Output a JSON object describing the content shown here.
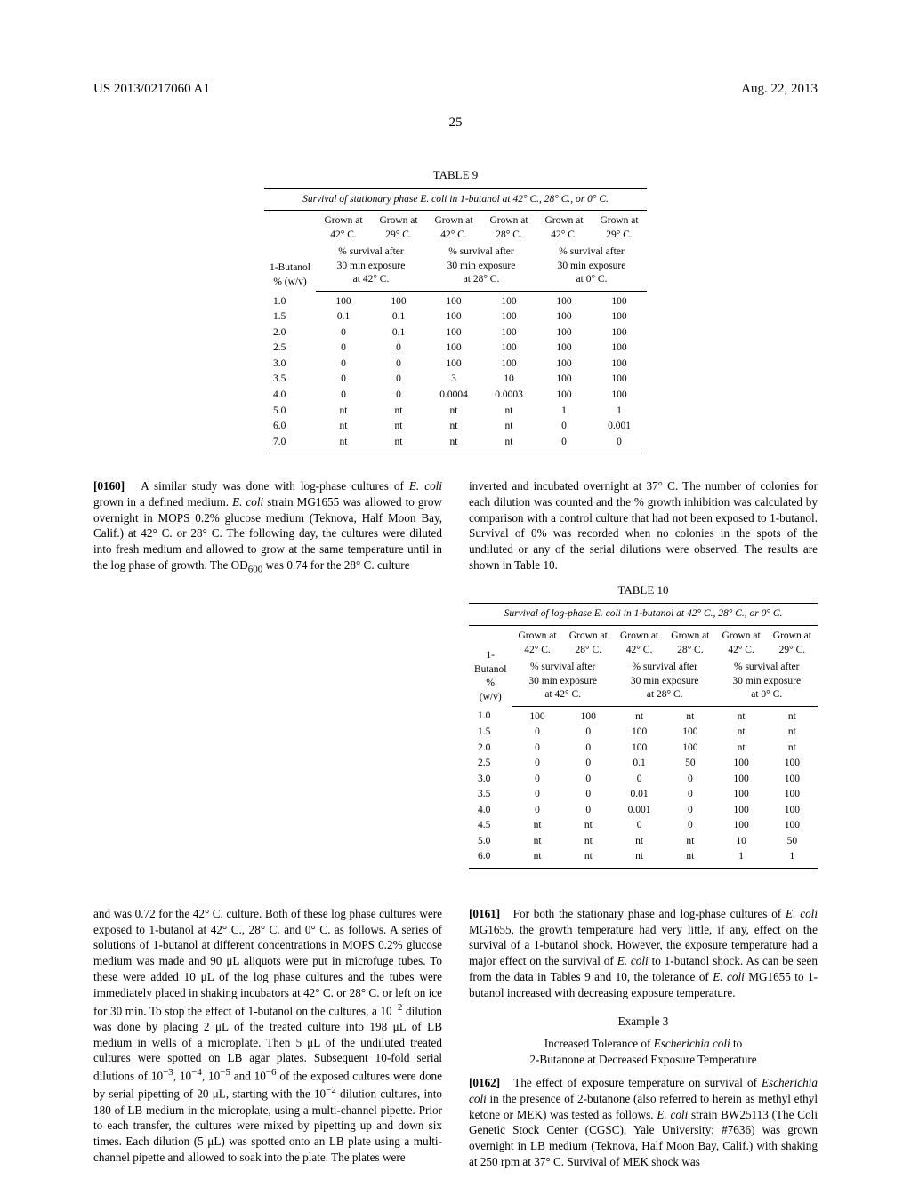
{
  "header": {
    "left": "US 2013/0217060 A1",
    "right": "Aug. 22, 2013",
    "page": "25"
  },
  "table9": {
    "label": "TABLE 9",
    "caption": "Survival of stationary phase E. coli in 1-butanol at 42° C., 28° C., or 0° C.",
    "col1": "1-Butanol\n% (w/v)",
    "groups": [
      {
        "a": "Grown at\n42° C.",
        "b": "Grown at\n29° C.",
        "sub": "% survival after\n30 min exposure\nat 42° C."
      },
      {
        "a": "Grown at\n42° C.",
        "b": "Grown at\n28° C.",
        "sub": "% survival after\n30 min exposure\nat 28° C."
      },
      {
        "a": "Grown at\n42° C.",
        "b": "Grown at\n29° C.",
        "sub": "% survival after\n30 min exposure\nat 0° C."
      }
    ],
    "rows": [
      [
        "1.0",
        "100",
        "100",
        "100",
        "100",
        "100",
        "100"
      ],
      [
        "1.5",
        "0.1",
        "0.1",
        "100",
        "100",
        "100",
        "100"
      ],
      [
        "2.0",
        "0",
        "0.1",
        "100",
        "100",
        "100",
        "100"
      ],
      [
        "2.5",
        "0",
        "0",
        "100",
        "100",
        "100",
        "100"
      ],
      [
        "3.0",
        "0",
        "0",
        "100",
        "100",
        "100",
        "100"
      ],
      [
        "3.5",
        "0",
        "0",
        "3",
        "10",
        "100",
        "100"
      ],
      [
        "4.0",
        "0",
        "0",
        "0.0004",
        "0.0003",
        "100",
        "100"
      ],
      [
        "5.0",
        "nt",
        "nt",
        "nt",
        "nt",
        "1",
        "1"
      ],
      [
        "6.0",
        "nt",
        "nt",
        "nt",
        "nt",
        "0",
        "0.001"
      ],
      [
        "7.0",
        "nt",
        "nt",
        "nt",
        "nt",
        "0",
        "0"
      ]
    ]
  },
  "para1": {
    "num": "[0160]",
    "text": "A similar study was done with log-phase cultures of E. coli grown in a defined medium. E. coli strain MG1655 was allowed to grow overnight in MOPS 0.2% glucose medium (Teknova, Half Moon Bay, Calif.) at 42° C. or 28° C. The following day, the cultures were diluted into fresh medium and allowed to grow at the same temperature until in the log phase of growth. The OD₆₀₀ was 0.74 for the 28° C. culture"
  },
  "para1b": "inverted and incubated overnight at 37° C. The number of colonies for each dilution was counted and the % growth inhibition was calculated by comparison with a control culture that had not been exposed to 1-butanol. Survival of 0% was recorded when no colonies in the spots of the undiluted or any of the serial dilutions were observed. The results are shown in Table 10.",
  "table10": {
    "label": "TABLE 10",
    "caption": "Survival of log-phase E. coli in 1-butanol at 42° C., 28° C., or 0° C.",
    "col1": "1-Butanol\n% (w/v)",
    "groups": [
      {
        "a": "Grown at\n42° C.",
        "b": "Grown at\n28° C.",
        "sub": "% survival after\n30 min exposure\nat 42° C."
      },
      {
        "a": "Grown at\n42° C.",
        "b": "Grown at\n28° C.",
        "sub": "% survival after\n30 min exposure\nat 28° C."
      },
      {
        "a": "Grown at\n42° C.",
        "b": "Grown at\n29° C.",
        "sub": "% survival after\n30 min exposure\nat 0° C."
      }
    ],
    "rows": [
      [
        "1.0",
        "100",
        "100",
        "nt",
        "nt",
        "nt",
        "nt"
      ],
      [
        "1.5",
        "0",
        "0",
        "100",
        "100",
        "nt",
        "nt"
      ],
      [
        "2.0",
        "0",
        "0",
        "100",
        "100",
        "nt",
        "nt"
      ],
      [
        "2.5",
        "0",
        "0",
        "0.1",
        "50",
        "100",
        "100"
      ],
      [
        "3.0",
        "0",
        "0",
        "0",
        "0",
        "100",
        "100"
      ],
      [
        "3.5",
        "0",
        "0",
        "0.01",
        "0",
        "100",
        "100"
      ],
      [
        "4.0",
        "0",
        "0",
        "0.001",
        "0",
        "100",
        "100"
      ],
      [
        "4.5",
        "nt",
        "nt",
        "0",
        "0",
        "100",
        "100"
      ],
      [
        "5.0",
        "nt",
        "nt",
        "nt",
        "nt",
        "10",
        "50"
      ],
      [
        "6.0",
        "nt",
        "nt",
        "nt",
        "nt",
        "1",
        "1"
      ]
    ]
  },
  "para2": "and was 0.72 for the 42° C. culture. Both of these log phase cultures were exposed to 1-butanol at 42° C., 28° C. and 0° C. as follows. A series of solutions of 1-butanol at different concentrations in MOPS 0.2% glucose medium was made and 90 μL aliquots were put in microfuge tubes. To these were added 10 μL of the log phase cultures and the tubes were immediately placed in shaking incubators at 42° C. or 28° C. or left on ice for 30 min. To stop the effect of 1-butanol on the cultures, a 10⁻² dilution was done by placing 2 μL of the treated culture into 198 μL of LB medium in wells of a microplate. Then 5 μL of the undiluted treated cultures were spotted on LB agar plates. Subsequent 10-fold serial dilutions of 10⁻³, 10⁻⁴, 10⁻⁵ and 10⁻⁶ of the exposed cultures were done by serial pipetting of 20 μL, starting with the 10⁻² dilution cultures, into 180 of LB medium in the microplate, using a multi-channel pipette. Prior to each transfer, the cultures were mixed by pipetting up and down six times. Each dilution (5 μL) was spotted onto an LB plate using a multi-channel pipette and allowed to soak into the plate. The plates were",
  "para3": {
    "num": "[0161]",
    "text": "For both the stationary phase and log-phase cultures of E. coli MG1655, the growth temperature had very little, if any, effect on the survival of a 1-butanol shock. However, the exposure temperature had a major effect on the survival of E. coli to 1-butanol shock. As can be seen from the data in Tables 9 and 10, the tolerance of E. coli MG1655 to 1-butanol increased with decreasing exposure temperature."
  },
  "example": {
    "label": "Example 3",
    "title": "Increased Tolerance of Escherichia coli to\n2-Butanone at Decreased Exposure Temperature"
  },
  "para4": {
    "num": "[0162]",
    "text": "The effect of exposure temperature on survival of Escherichia coli in the presence of 2-butanone (also referred to herein as methyl ethyl ketone or MEK) was tested as follows. E. coli strain BW25113 (The Coli Genetic Stock Center (CGSC), Yale University; #7636) was grown overnight in LB medium (Teknova, Half Moon Bay, Calif.) with shaking at 250 rpm at 37° C. Survival of MEK shock was"
  }
}
